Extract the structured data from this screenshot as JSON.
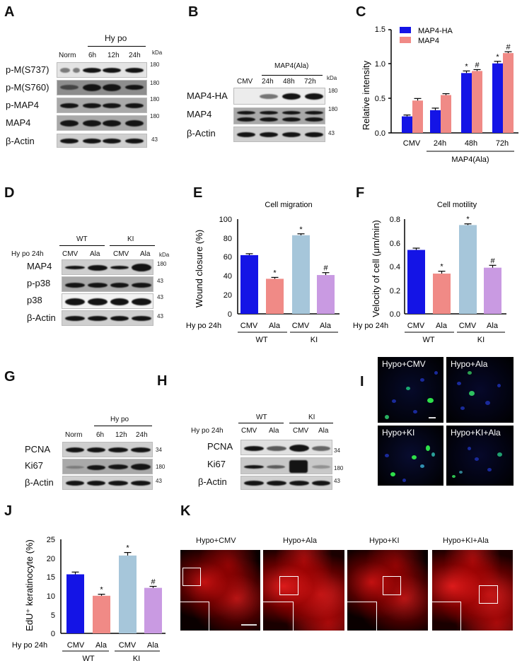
{
  "panels": {
    "A": {
      "letter": "A",
      "group_label": "Hy po",
      "lanes": [
        "Norm",
        "6h",
        "12h",
        "24h"
      ],
      "kda_label": "kDa",
      "rows": [
        {
          "label": "p-M(S737)",
          "marker": "180"
        },
        {
          "label": "p-M(S760)",
          "marker": "180"
        },
        {
          "label": "p-MAP4",
          "marker": "180"
        },
        {
          "label": "MAP4",
          "marker": "180"
        },
        {
          "label": "β-Actin",
          "marker": "43"
        }
      ]
    },
    "B": {
      "letter": "B",
      "group_label": "MAP4(Ala)",
      "lanes": [
        "CMV",
        "24h",
        "48h",
        "72h"
      ],
      "kda_label": "kDa",
      "rows": [
        {
          "label": "MAP4-HA",
          "marker": "180"
        },
        {
          "label": "MAP4",
          "marker": "180"
        },
        {
          "label": "β-Actin",
          "marker": "43"
        }
      ]
    },
    "C": {
      "letter": "C"
    },
    "D": {
      "letter": "D",
      "groups": [
        "WT",
        "KI"
      ],
      "condition": "Hy po 24h",
      "lanes": [
        "CMV",
        "Ala",
        "CMV",
        "Ala"
      ],
      "kda_label": "kDa",
      "rows": [
        {
          "label": "MAP4",
          "marker": "180"
        },
        {
          "label": "p-p38",
          "marker": "43"
        },
        {
          "label": "p38",
          "marker": "43"
        },
        {
          "label": "β-Actin",
          "marker": "43"
        }
      ]
    },
    "E": {
      "letter": "E"
    },
    "F": {
      "letter": "F"
    },
    "G": {
      "letter": "G",
      "group_label": "Hy po",
      "lanes": [
        "Norm",
        "6h",
        "12h",
        "24h"
      ],
      "rows": [
        {
          "label": "PCNA",
          "marker": "34"
        },
        {
          "label": "Ki67",
          "marker": "180"
        },
        {
          "label": "β-Actin",
          "marker": "43"
        }
      ]
    },
    "H": {
      "letter": "H",
      "groups": [
        "WT",
        "KI"
      ],
      "condition": "Hy po 24h",
      "lanes": [
        "CMV",
        "Ala",
        "CMV",
        "Ala"
      ],
      "rows": [
        {
          "label": "PCNA",
          "marker": "34"
        },
        {
          "label": "Ki67",
          "marker": "180"
        },
        {
          "label": "β-Actin",
          "marker": "43"
        }
      ]
    },
    "I": {
      "letter": "I",
      "images": [
        "Hypo+CMV",
        "Hypo+Ala",
        "Hypo+KI",
        "Hypo+KI+Ala"
      ]
    },
    "J": {
      "letter": "J"
    },
    "K": {
      "letter": "K",
      "images": [
        "Hypo+CMV",
        "Hypo+Ala",
        "Hypo+KI",
        "Hypo+KI+Ala"
      ]
    }
  },
  "colors": {
    "blue": "#1414e6",
    "salmon": "#f08a86",
    "lightblue": "#a6c6da",
    "lavender": "#c99ae2"
  },
  "chart_data": [
    {
      "panel": "C",
      "type": "bar",
      "title": "",
      "categories": [
        "CMV",
        "24h",
        "48h",
        "72h"
      ],
      "group_label": "MAP4(Ala)",
      "xlabel": "",
      "ylabel": "Relative intensity",
      "ylim": [
        0,
        1.5
      ],
      "yticks": [
        "0.0",
        "0.5",
        "1.0",
        "1.5"
      ],
      "legend": [
        "MAP4-HA",
        "MAP4"
      ],
      "legend_position": "top-left",
      "series": [
        {
          "name": "MAP4-HA",
          "values": [
            0.24,
            0.33,
            0.87,
            1.01
          ],
          "errors": [
            0.02,
            0.03,
            0.03,
            0.03
          ],
          "annotations": [
            "",
            "",
            "*",
            "*"
          ]
        },
        {
          "name": "MAP4",
          "values": [
            0.47,
            0.55,
            0.9,
            1.16
          ],
          "errors": [
            0.03,
            0.02,
            0.02,
            0.02
          ],
          "annotations": [
            "",
            "",
            "#",
            "#"
          ]
        }
      ]
    },
    {
      "panel": "E",
      "type": "bar",
      "title": "Cell migration",
      "condition_label": "Hy po 24h",
      "categories": [
        "CMV",
        "Ala",
        "CMV",
        "Ala"
      ],
      "groups": [
        "WT",
        "KI"
      ],
      "ylabel": "Wound closure (%)",
      "ylim": [
        0,
        100
      ],
      "yticks": [
        "0",
        "20",
        "40",
        "60",
        "80",
        "100"
      ],
      "values": [
        62,
        37,
        83,
        41
      ],
      "errors": [
        1.5,
        1.5,
        1.5,
        2.5
      ],
      "annotations": [
        "",
        "*",
        "*",
        "#"
      ]
    },
    {
      "panel": "F",
      "type": "bar",
      "title": "Cell motility",
      "condition_label": "Hy po 24h",
      "categories": [
        "CMV",
        "Ala",
        "CMV",
        "Ala"
      ],
      "groups": [
        "WT",
        "KI"
      ],
      "ylabel": "Velocity of cell (μm/min)",
      "ylim": [
        0,
        0.8
      ],
      "yticks": [
        "0.0",
        "0.2",
        "0.4",
        "0.6",
        "0.8"
      ],
      "values": [
        0.54,
        0.34,
        0.75,
        0.39
      ],
      "errors": [
        0.015,
        0.02,
        0.01,
        0.02
      ],
      "annotations": [
        "",
        "*",
        "*",
        "#"
      ]
    },
    {
      "panel": "J",
      "type": "bar",
      "title": "",
      "condition_label": "Hy po 24h",
      "categories": [
        "CMV",
        "Ala",
        "CMV",
        "Ala"
      ],
      "groups": [
        "WT",
        "KI"
      ],
      "ylabel": "EdU⁺ keratinocyte (%)",
      "ylim": [
        0,
        25
      ],
      "yticks": [
        "0",
        "5",
        "10",
        "15",
        "20",
        "25"
      ],
      "values": [
        15.7,
        10.0,
        20.7,
        12.1
      ],
      "errors": [
        0.6,
        0.4,
        0.8,
        0.4
      ],
      "annotations": [
        "",
        "*",
        "*",
        "#"
      ]
    }
  ]
}
